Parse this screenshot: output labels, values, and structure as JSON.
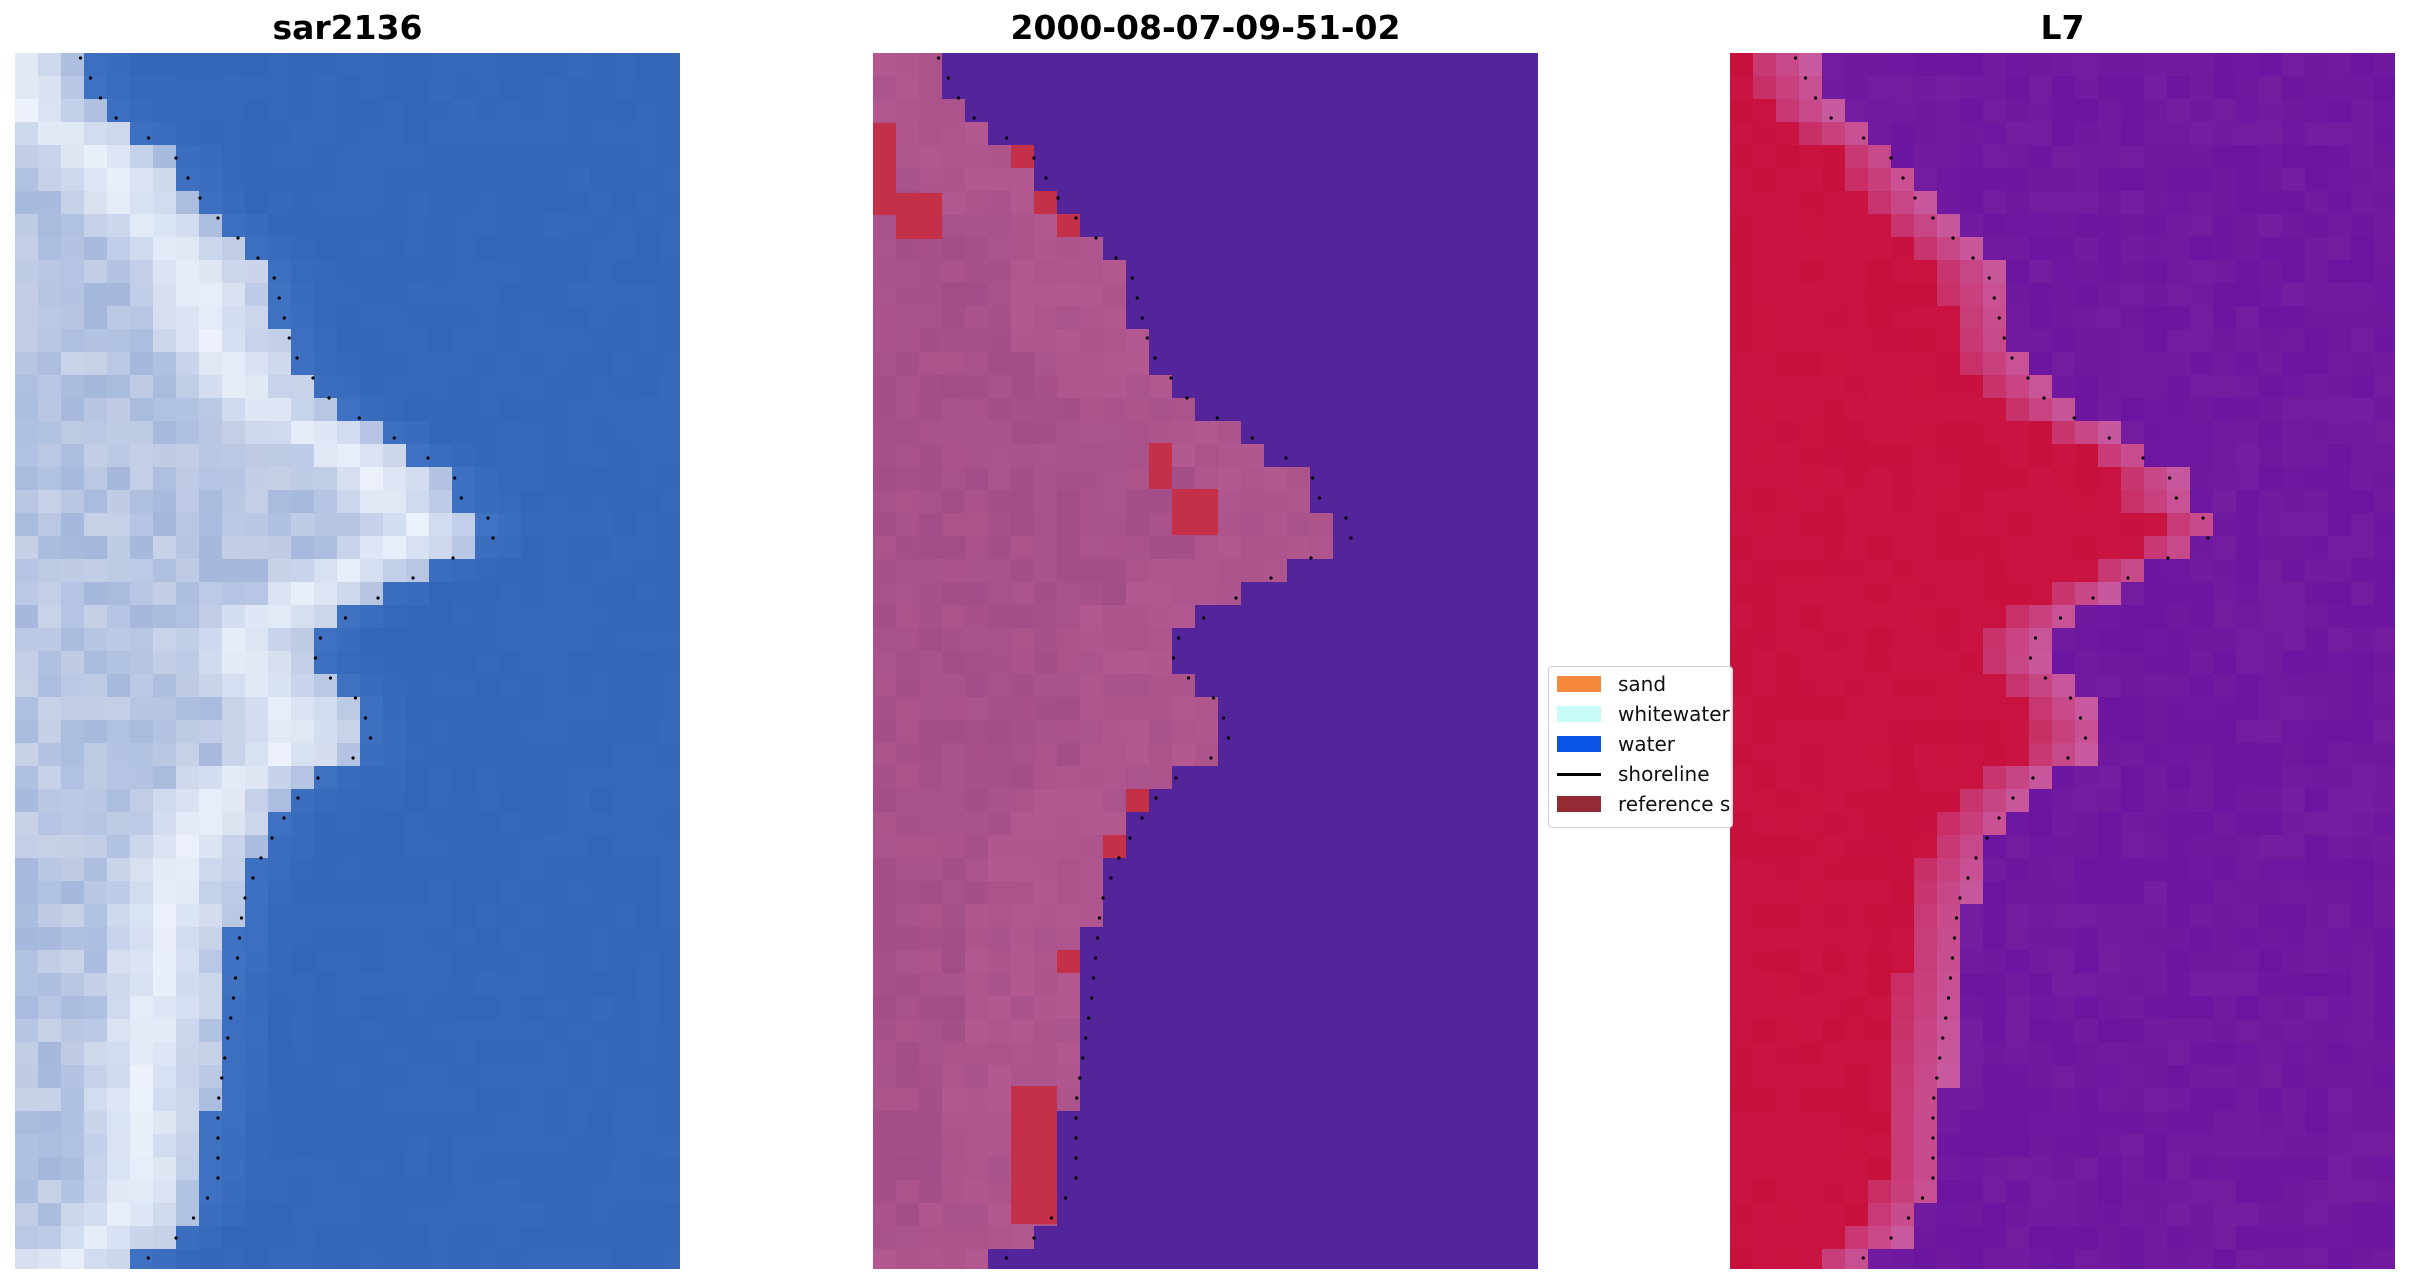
{
  "panels": [
    {
      "title": "sar2136",
      "kind": "rgb"
    },
    {
      "title": "2000-08-07-09-51-02",
      "kind": "classified"
    },
    {
      "title": "L7",
      "kind": "index"
    }
  ],
  "legend": {
    "items": [
      {
        "label": "sand",
        "color": "#f5883a",
        "type": "patch"
      },
      {
        "label": "whitewater",
        "color": "#c8fbf8",
        "type": "patch"
      },
      {
        "label": "water",
        "color": "#0a55e6",
        "type": "patch"
      },
      {
        "label": "shoreline",
        "color": "#000000",
        "type": "line"
      },
      {
        "label": "reference s",
        "color": "#952b34",
        "type": "patch"
      }
    ]
  },
  "colors": {
    "rgb_water": "#3466b8",
    "rgb_land": "#c8d2e8",
    "rgb_bright": "#f4f8ff",
    "class_water": "#54249a",
    "class_land": "#b45890",
    "class_reference": "#c43048",
    "index_water": "#6a14a0",
    "index_land": "#c8103c",
    "index_edge": "#c85aa0"
  }
}
